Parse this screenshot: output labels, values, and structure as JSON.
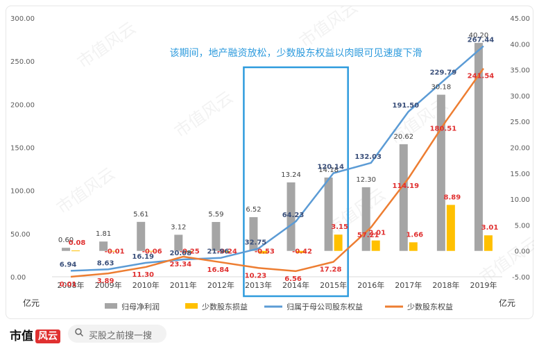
{
  "chart_data": {
    "type": "bar",
    "annotation": "该期间，地产融资放松，少数股东权益以肉眼可见速度下滑",
    "categories": [
      "2008年",
      "2009年",
      "2010年",
      "2011年",
      "2012年",
      "2013年",
      "2014年",
      "2015年",
      "2016年",
      "2017年",
      "2018年",
      "2019年"
    ],
    "left_axis": {
      "unit": "亿元",
      "range": [
        0,
        300
      ],
      "ticks": [
        "0.00",
        "50.00",
        "100.00",
        "150.00",
        "200.00",
        "250.00",
        "300.00"
      ]
    },
    "right_axis": {
      "unit": "亿元",
      "range": [
        -5,
        45
      ],
      "ticks": [
        "-5.00",
        "0.00",
        "5.00",
        "10.00",
        "15.00",
        "20.00",
        "25.00",
        "30.00",
        "35.00",
        "40.00",
        "45.00"
      ]
    },
    "series": [
      {
        "name": "归母净利润",
        "type": "bar",
        "axis": "right",
        "color": "#a5a5a5",
        "values": [
          0.6,
          1.81,
          5.61,
          3.12,
          5.59,
          6.52,
          13.24,
          14.18,
          12.3,
          20.62,
          30.18,
          40.2
        ],
        "labels": [
          "0.60",
          "1.81",
          "5.61",
          "3.12",
          "5.59",
          "6.52",
          "13.24",
          "14.18",
          "12.30",
          "20.62",
          "30.18",
          "40.20"
        ]
      },
      {
        "name": "少数股东损益",
        "type": "bar",
        "axis": "right",
        "color": "#ffc000",
        "values": [
          0.08,
          -0.01,
          -0.06,
          -0.25,
          -0.24,
          -0.53,
          -0.42,
          3.15,
          2.01,
          1.66,
          8.89,
          3.01
        ],
        "labels": [
          "0.08",
          "-0.01",
          "-0.06",
          "-0.25",
          "-0.24",
          "-0.53",
          "-0.42",
          "3.15",
          "2.01",
          "1.66",
          "8.89",
          "3.01"
        ]
      },
      {
        "name": "归属于母公司股东权益",
        "type": "line",
        "axis": "left",
        "color": "#5b9bd5",
        "values": [
          6.94,
          8.63,
          16.19,
          20.08,
          21.96,
          32.75,
          64.23,
          120.14,
          132.03,
          191.5,
          229.79,
          267.44
        ],
        "labels": [
          "6.94",
          "8.63",
          "16.19",
          "20.08",
          "21.96",
          "32.75",
          "64.23",
          "120.14",
          "132.03",
          "191.50",
          "229.79",
          "267.44"
        ]
      },
      {
        "name": "少数股东权益",
        "type": "line",
        "axis": "left",
        "color": "#ed7d31",
        "values": [
          0.01,
          3.89,
          11.3,
          23.34,
          16.84,
          10.23,
          6.56,
          17.28,
          57.21,
          114.19,
          180.51,
          241.54
        ],
        "labels": [
          "0.01",
          "3.89",
          "11.30",
          "23.34",
          "16.84",
          "10.23",
          "6.56",
          "17.28",
          "57.21",
          "114.19",
          "180.51",
          "241.54"
        ]
      }
    ],
    "highlight_range": [
      "2013年",
      "2015年"
    ],
    "legend_position": "bottom",
    "grid": false
  },
  "watermark": "市值风云",
  "footer": {
    "brand": "市值",
    "brand_badge": "风云",
    "search_placeholder": "买股之前搜一搜",
    "search_icon": "search-icon"
  },
  "colors": {
    "highlight": "#2e9bdd",
    "annotation": "#2e9bdd",
    "line_label_blue": "#3a4f7a",
    "line_label_red": "#e03030"
  }
}
